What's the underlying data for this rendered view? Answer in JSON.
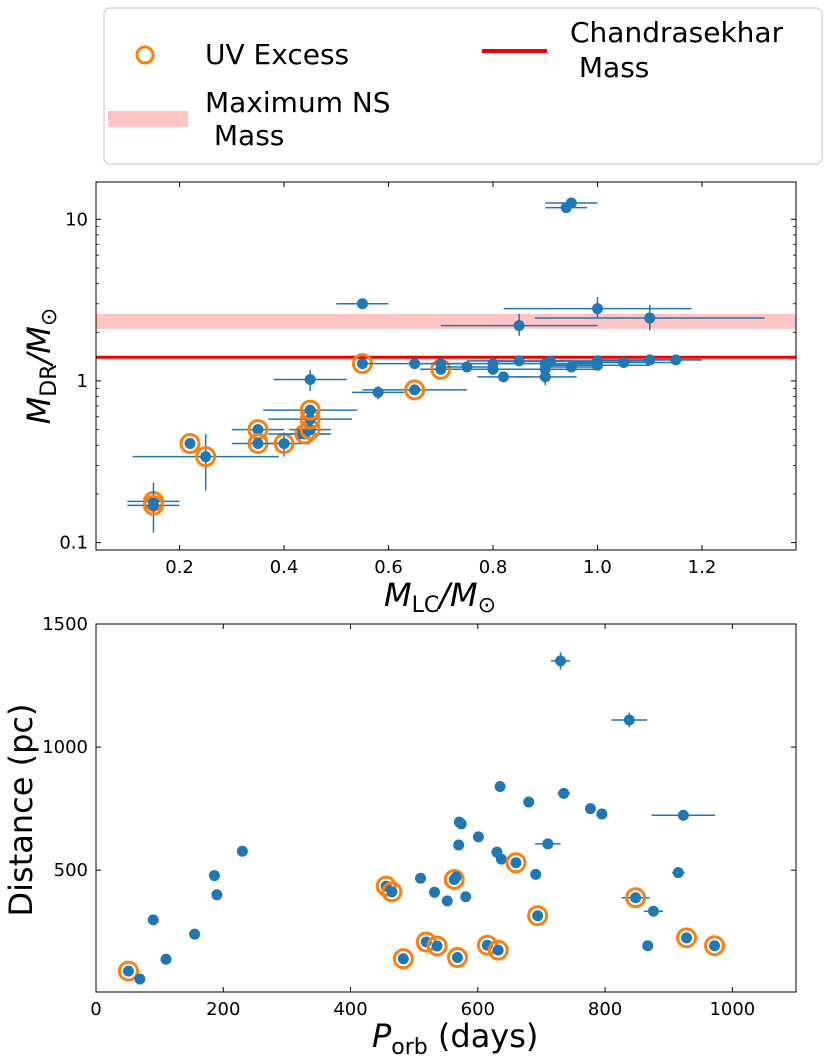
{
  "legend": {
    "items": [
      {
        "label_lines": [
          "UV Excess"
        ],
        "marker": "orange-ring"
      },
      {
        "label_lines": [
          "Chandrasekhar",
          " Mass"
        ],
        "marker": "red-line"
      },
      {
        "label_lines": [
          "Maximum NS",
          " Mass"
        ],
        "marker": "pink-band"
      }
    ]
  },
  "colors": {
    "point": "#1f77b4",
    "uv_ring": "#ff7f0e",
    "chandrasekhar": "#ee0000",
    "ns_band": "#ffc4c4"
  },
  "chart_data": [
    {
      "type": "scatter",
      "title": "",
      "xlabel": {
        "main": "M",
        "sub": "LC",
        "post": "/M",
        "sun": "⊙"
      },
      "ylabel": {
        "main": "M",
        "sub": "DR",
        "post": "/M",
        "sun": "⊙"
      },
      "xlim": [
        0.04,
        1.38
      ],
      "ylim": [
        0.09,
        17
      ],
      "yscale": "log",
      "xticks": [
        0.2,
        0.4,
        0.6,
        0.8,
        1.0,
        1.2
      ],
      "xtick_labels": [
        "0.2",
        "0.4",
        "0.6",
        "0.8",
        "1.0",
        "1.2"
      ],
      "yticks": [
        0.1,
        1,
        10
      ],
      "ytick_labels": [
        "0.1",
        "1",
        "10"
      ],
      "chandrasekhar_mass": 1.4,
      "ns_band": [
        2.1,
        2.6
      ],
      "points": [
        {
          "x": 0.15,
          "y": 0.18,
          "xerr": 0.05,
          "yerr": [
            0.03,
            0.03
          ],
          "uv": true
        },
        {
          "x": 0.15,
          "y": 0.17,
          "xerr": 0.05,
          "yerr": [
            0.055,
            0.065
          ],
          "uv": true
        },
        {
          "x": 0.22,
          "y": 0.41,
          "xerr": 0.0,
          "yerr": [
            0,
            0
          ],
          "uv": true
        },
        {
          "x": 0.25,
          "y": 0.34,
          "xerr": 0.14,
          "yerr": [
            0.13,
            0.13
          ],
          "uv": true
        },
        {
          "x": 0.35,
          "y": 0.5,
          "xerr": 0.05,
          "yerr": [
            0.04,
            0.04
          ],
          "uv": true
        },
        {
          "x": 0.35,
          "y": 0.41,
          "xerr": 0.05,
          "yerr": [
            0.02,
            0.02
          ],
          "uv": true
        },
        {
          "x": 0.4,
          "y": 0.41,
          "xerr": 0.05,
          "yerr": [
            0.07,
            0.07
          ],
          "uv": true
        },
        {
          "x": 0.43,
          "y": 0.47,
          "xerr": 0.06,
          "yerr": [
            0.03,
            0.03
          ],
          "uv": false
        },
        {
          "x": 0.44,
          "y": 0.47,
          "xerr": 0.04,
          "yerr": [
            0.03,
            0.03
          ],
          "uv": true
        },
        {
          "x": 0.45,
          "y": 0.5,
          "xerr": 0.04,
          "yerr": [
            0.03,
            0.03
          ],
          "uv": true
        },
        {
          "x": 0.45,
          "y": 0.58,
          "xerr": 0.08,
          "yerr": [
            0.04,
            0.04
          ],
          "uv": true
        },
        {
          "x": 0.45,
          "y": 0.66,
          "xerr": 0.09,
          "yerr": [
            0.05,
            0.05
          ],
          "uv": true
        },
        {
          "x": 0.45,
          "y": 1.02,
          "xerr": 0.07,
          "yerr": [
            0.15,
            0.15
          ],
          "uv": false
        },
        {
          "x": 0.55,
          "y": 3.0,
          "xerr": 0.05,
          "yerr": [
            0.2,
            0.2
          ],
          "uv": false
        },
        {
          "x": 0.55,
          "y": 1.28,
          "xerr": 0.0,
          "yerr": [
            0,
            0
          ],
          "uv": true
        },
        {
          "x": 0.58,
          "y": 0.85,
          "xerr": 0.05,
          "yerr": [
            0.08,
            0.08
          ],
          "uv": false
        },
        {
          "x": 0.65,
          "y": 0.88,
          "xerr": 0.1,
          "yerr": [
            0.05,
            0.05
          ],
          "uv": true
        },
        {
          "x": 0.65,
          "y": 1.28,
          "xerr": 0.1,
          "yerr": [
            0.05,
            0.05
          ],
          "uv": false
        },
        {
          "x": 0.7,
          "y": 1.18,
          "xerr": 0.04,
          "yerr": [
            0.06,
            0.06
          ],
          "uv": true
        },
        {
          "x": 0.7,
          "y": 1.28,
          "xerr": 0.05,
          "yerr": [
            0.05,
            0.05
          ],
          "uv": false
        },
        {
          "x": 0.75,
          "y": 1.22,
          "xerr": 0.05,
          "yerr": [
            0.05,
            0.05
          ],
          "uv": false
        },
        {
          "x": 0.8,
          "y": 1.28,
          "xerr": 0.05,
          "yerr": [
            0.05,
            0.05
          ],
          "uv": false
        },
        {
          "x": 0.8,
          "y": 1.18,
          "xerr": 0.05,
          "yerr": [
            0.05,
            0.05
          ],
          "uv": false
        },
        {
          "x": 0.82,
          "y": 1.06,
          "xerr": 0.05,
          "yerr": [
            0.05,
            0.05
          ],
          "uv": false
        },
        {
          "x": 0.85,
          "y": 2.2,
          "xerr": 0.15,
          "yerr": [
            0.3,
            0.4
          ],
          "uv": false
        },
        {
          "x": 0.85,
          "y": 1.33,
          "xerr": 0.1,
          "yerr": [
            0.05,
            0.05
          ],
          "uv": false
        },
        {
          "x": 0.9,
          "y": 1.28,
          "xerr": 0.1,
          "yerr": [
            0.05,
            0.05
          ],
          "uv": false
        },
        {
          "x": 0.9,
          "y": 1.18,
          "xerr": 0.1,
          "yerr": [
            0.05,
            0.05
          ],
          "uv": false
        },
        {
          "x": 0.9,
          "y": 1.06,
          "xerr": 0.06,
          "yerr": [
            0.12,
            0.12
          ],
          "uv": false
        },
        {
          "x": 0.91,
          "y": 1.32,
          "xerr": 0.1,
          "yerr": [
            0.05,
            0.05
          ],
          "uv": false
        },
        {
          "x": 0.94,
          "y": 11.8,
          "xerr": 0.04,
          "yerr": [
            0.8,
            0.8
          ],
          "uv": false
        },
        {
          "x": 0.95,
          "y": 12.6,
          "xerr": 0.05,
          "yerr": [
            0.9,
            0.9
          ],
          "uv": false
        },
        {
          "x": 0.95,
          "y": 1.22,
          "xerr": 0.05,
          "yerr": [
            0.05,
            0.05
          ],
          "uv": false
        },
        {
          "x": 1.0,
          "y": 2.8,
          "xerr": 0.18,
          "yerr": [
            0.35,
            0.5
          ],
          "uv": false
        },
        {
          "x": 1.0,
          "y": 1.33,
          "xerr": 0.1,
          "yerr": [
            0.05,
            0.05
          ],
          "uv": false
        },
        {
          "x": 1.0,
          "y": 1.25,
          "xerr": 0.1,
          "yerr": [
            0.05,
            0.05
          ],
          "uv": false
        },
        {
          "x": 1.05,
          "y": 1.3,
          "xerr": 0.1,
          "yerr": [
            0.05,
            0.05
          ],
          "uv": false
        },
        {
          "x": 1.1,
          "y": 2.45,
          "xerr": 0.22,
          "yerr": [
            0.4,
            0.5
          ],
          "uv": false
        },
        {
          "x": 1.1,
          "y": 1.35,
          "xerr": 0.1,
          "yerr": [
            0.05,
            0.05
          ],
          "uv": false
        },
        {
          "x": 1.15,
          "y": 1.35,
          "xerr": 0.05,
          "yerr": [
            0.05,
            0.05
          ],
          "uv": false
        }
      ]
    },
    {
      "type": "scatter",
      "title": "",
      "xlabel": {
        "main": "P",
        "sub": "orb",
        "post": " (days)"
      },
      "ylabel": {
        "text": "Distance (pc)"
      },
      "xlim": [
        0,
        1100
      ],
      "ylim": [
        5,
        1500
      ],
      "xticks": [
        0,
        200,
        400,
        600,
        800,
        1000
      ],
      "xtick_labels": [
        "0",
        "200",
        "400",
        "600",
        "800",
        "1000"
      ],
      "yticks": [
        500,
        1000,
        1500
      ],
      "ytick_labels": [
        "500",
        "1000",
        "1500"
      ],
      "points": [
        {
          "x": 51,
          "y": 90,
          "xerr": 0,
          "yerr": 0,
          "uv": true
        },
        {
          "x": 69,
          "y": 58,
          "xerr": 0,
          "yerr": 0,
          "uv": false
        },
        {
          "x": 90,
          "y": 298,
          "xerr": 0,
          "yerr": 0,
          "uv": false
        },
        {
          "x": 110,
          "y": 138,
          "xerr": 0,
          "yerr": 0,
          "uv": false
        },
        {
          "x": 155,
          "y": 240,
          "xerr": 0,
          "yerr": 0,
          "uv": false
        },
        {
          "x": 186,
          "y": 478,
          "xerr": 0,
          "yerr": 0,
          "uv": false
        },
        {
          "x": 190,
          "y": 400,
          "xerr": 0,
          "yerr": 0,
          "uv": false
        },
        {
          "x": 230,
          "y": 577,
          "xerr": 0,
          "yerr": 0,
          "uv": false
        },
        {
          "x": 456,
          "y": 435,
          "xerr": 0,
          "yerr": 0,
          "uv": true
        },
        {
          "x": 465,
          "y": 412,
          "xerr": 0,
          "yerr": 0,
          "uv": true
        },
        {
          "x": 483,
          "y": 140,
          "xerr": 0,
          "yerr": 0,
          "uv": true
        },
        {
          "x": 510,
          "y": 467,
          "xerr": 0,
          "yerr": 0,
          "uv": false
        },
        {
          "x": 519,
          "y": 208,
          "xerr": 0,
          "yerr": 0,
          "uv": true
        },
        {
          "x": 532,
          "y": 410,
          "xerr": 0,
          "yerr": 0,
          "uv": false
        },
        {
          "x": 536,
          "y": 192,
          "xerr": 0,
          "yerr": 0,
          "uv": true
        },
        {
          "x": 552,
          "y": 375,
          "xerr": 0,
          "yerr": 0,
          "uv": false
        },
        {
          "x": 563,
          "y": 462,
          "xerr": 0,
          "yerr": 0,
          "uv": true
        },
        {
          "x": 566,
          "y": 472,
          "xerr": 0,
          "yerr": 0,
          "uv": false
        },
        {
          "x": 568,
          "y": 145,
          "xerr": 0,
          "yerr": 0,
          "uv": true
        },
        {
          "x": 570,
          "y": 602,
          "xerr": 0,
          "yerr": 0,
          "uv": false
        },
        {
          "x": 571,
          "y": 695,
          "xerr": 0,
          "yerr": 0,
          "uv": false
        },
        {
          "x": 574,
          "y": 688,
          "xerr": 0,
          "yerr": 0,
          "uv": false
        },
        {
          "x": 581,
          "y": 392,
          "xerr": 0,
          "yerr": 0,
          "uv": false
        },
        {
          "x": 601,
          "y": 635,
          "xerr": 0,
          "yerr": 0,
          "uv": false
        },
        {
          "x": 615,
          "y": 195,
          "xerr": 0,
          "yerr": 0,
          "uv": true
        },
        {
          "x": 630,
          "y": 573,
          "xerr": 0,
          "yerr": 0,
          "uv": false
        },
        {
          "x": 632,
          "y": 175,
          "xerr": 0,
          "yerr": 0,
          "uv": true
        },
        {
          "x": 635,
          "y": 840,
          "xerr": 0,
          "yerr": 0,
          "uv": false
        },
        {
          "x": 637,
          "y": 545,
          "xerr": 0,
          "yerr": 0,
          "uv": false
        },
        {
          "x": 660,
          "y": 530,
          "xerr": 0,
          "yerr": 0,
          "uv": true
        },
        {
          "x": 680,
          "y": 777,
          "xerr": 0,
          "yerr": 0,
          "uv": false
        },
        {
          "x": 691,
          "y": 483,
          "xerr": 0,
          "yerr": 0,
          "uv": false
        },
        {
          "x": 694,
          "y": 315,
          "xerr": 0,
          "yerr": 0,
          "uv": true
        },
        {
          "x": 710,
          "y": 607,
          "xerr": 20,
          "yerr": 0,
          "uv": false
        },
        {
          "x": 730,
          "y": 1350,
          "xerr": 15,
          "yerr": 35,
          "uv": false
        },
        {
          "x": 735,
          "y": 812,
          "xerr": 10,
          "yerr": 20,
          "uv": false
        },
        {
          "x": 777,
          "y": 750,
          "xerr": 0,
          "yerr": 0,
          "uv": false
        },
        {
          "x": 795,
          "y": 728,
          "xerr": 0,
          "yerr": 0,
          "uv": false
        },
        {
          "x": 838,
          "y": 1110,
          "xerr": 28,
          "yerr": 30,
          "uv": false
        },
        {
          "x": 848,
          "y": 388,
          "xerr": 22,
          "yerr": 0,
          "uv": true
        },
        {
          "x": 867,
          "y": 193,
          "xerr": 0,
          "yerr": 0,
          "uv": false
        },
        {
          "x": 876,
          "y": 333,
          "xerr": 15,
          "yerr": 0,
          "uv": false
        },
        {
          "x": 915,
          "y": 490,
          "xerr": 10,
          "yerr": 0,
          "uv": false
        },
        {
          "x": 923,
          "y": 723,
          "xerr": 50,
          "yerr": 0,
          "uv": false
        },
        {
          "x": 928,
          "y": 225,
          "xerr": 0,
          "yerr": 0,
          "uv": true
        },
        {
          "x": 972,
          "y": 193,
          "xerr": 0,
          "yerr": 0,
          "uv": true
        }
      ]
    }
  ]
}
